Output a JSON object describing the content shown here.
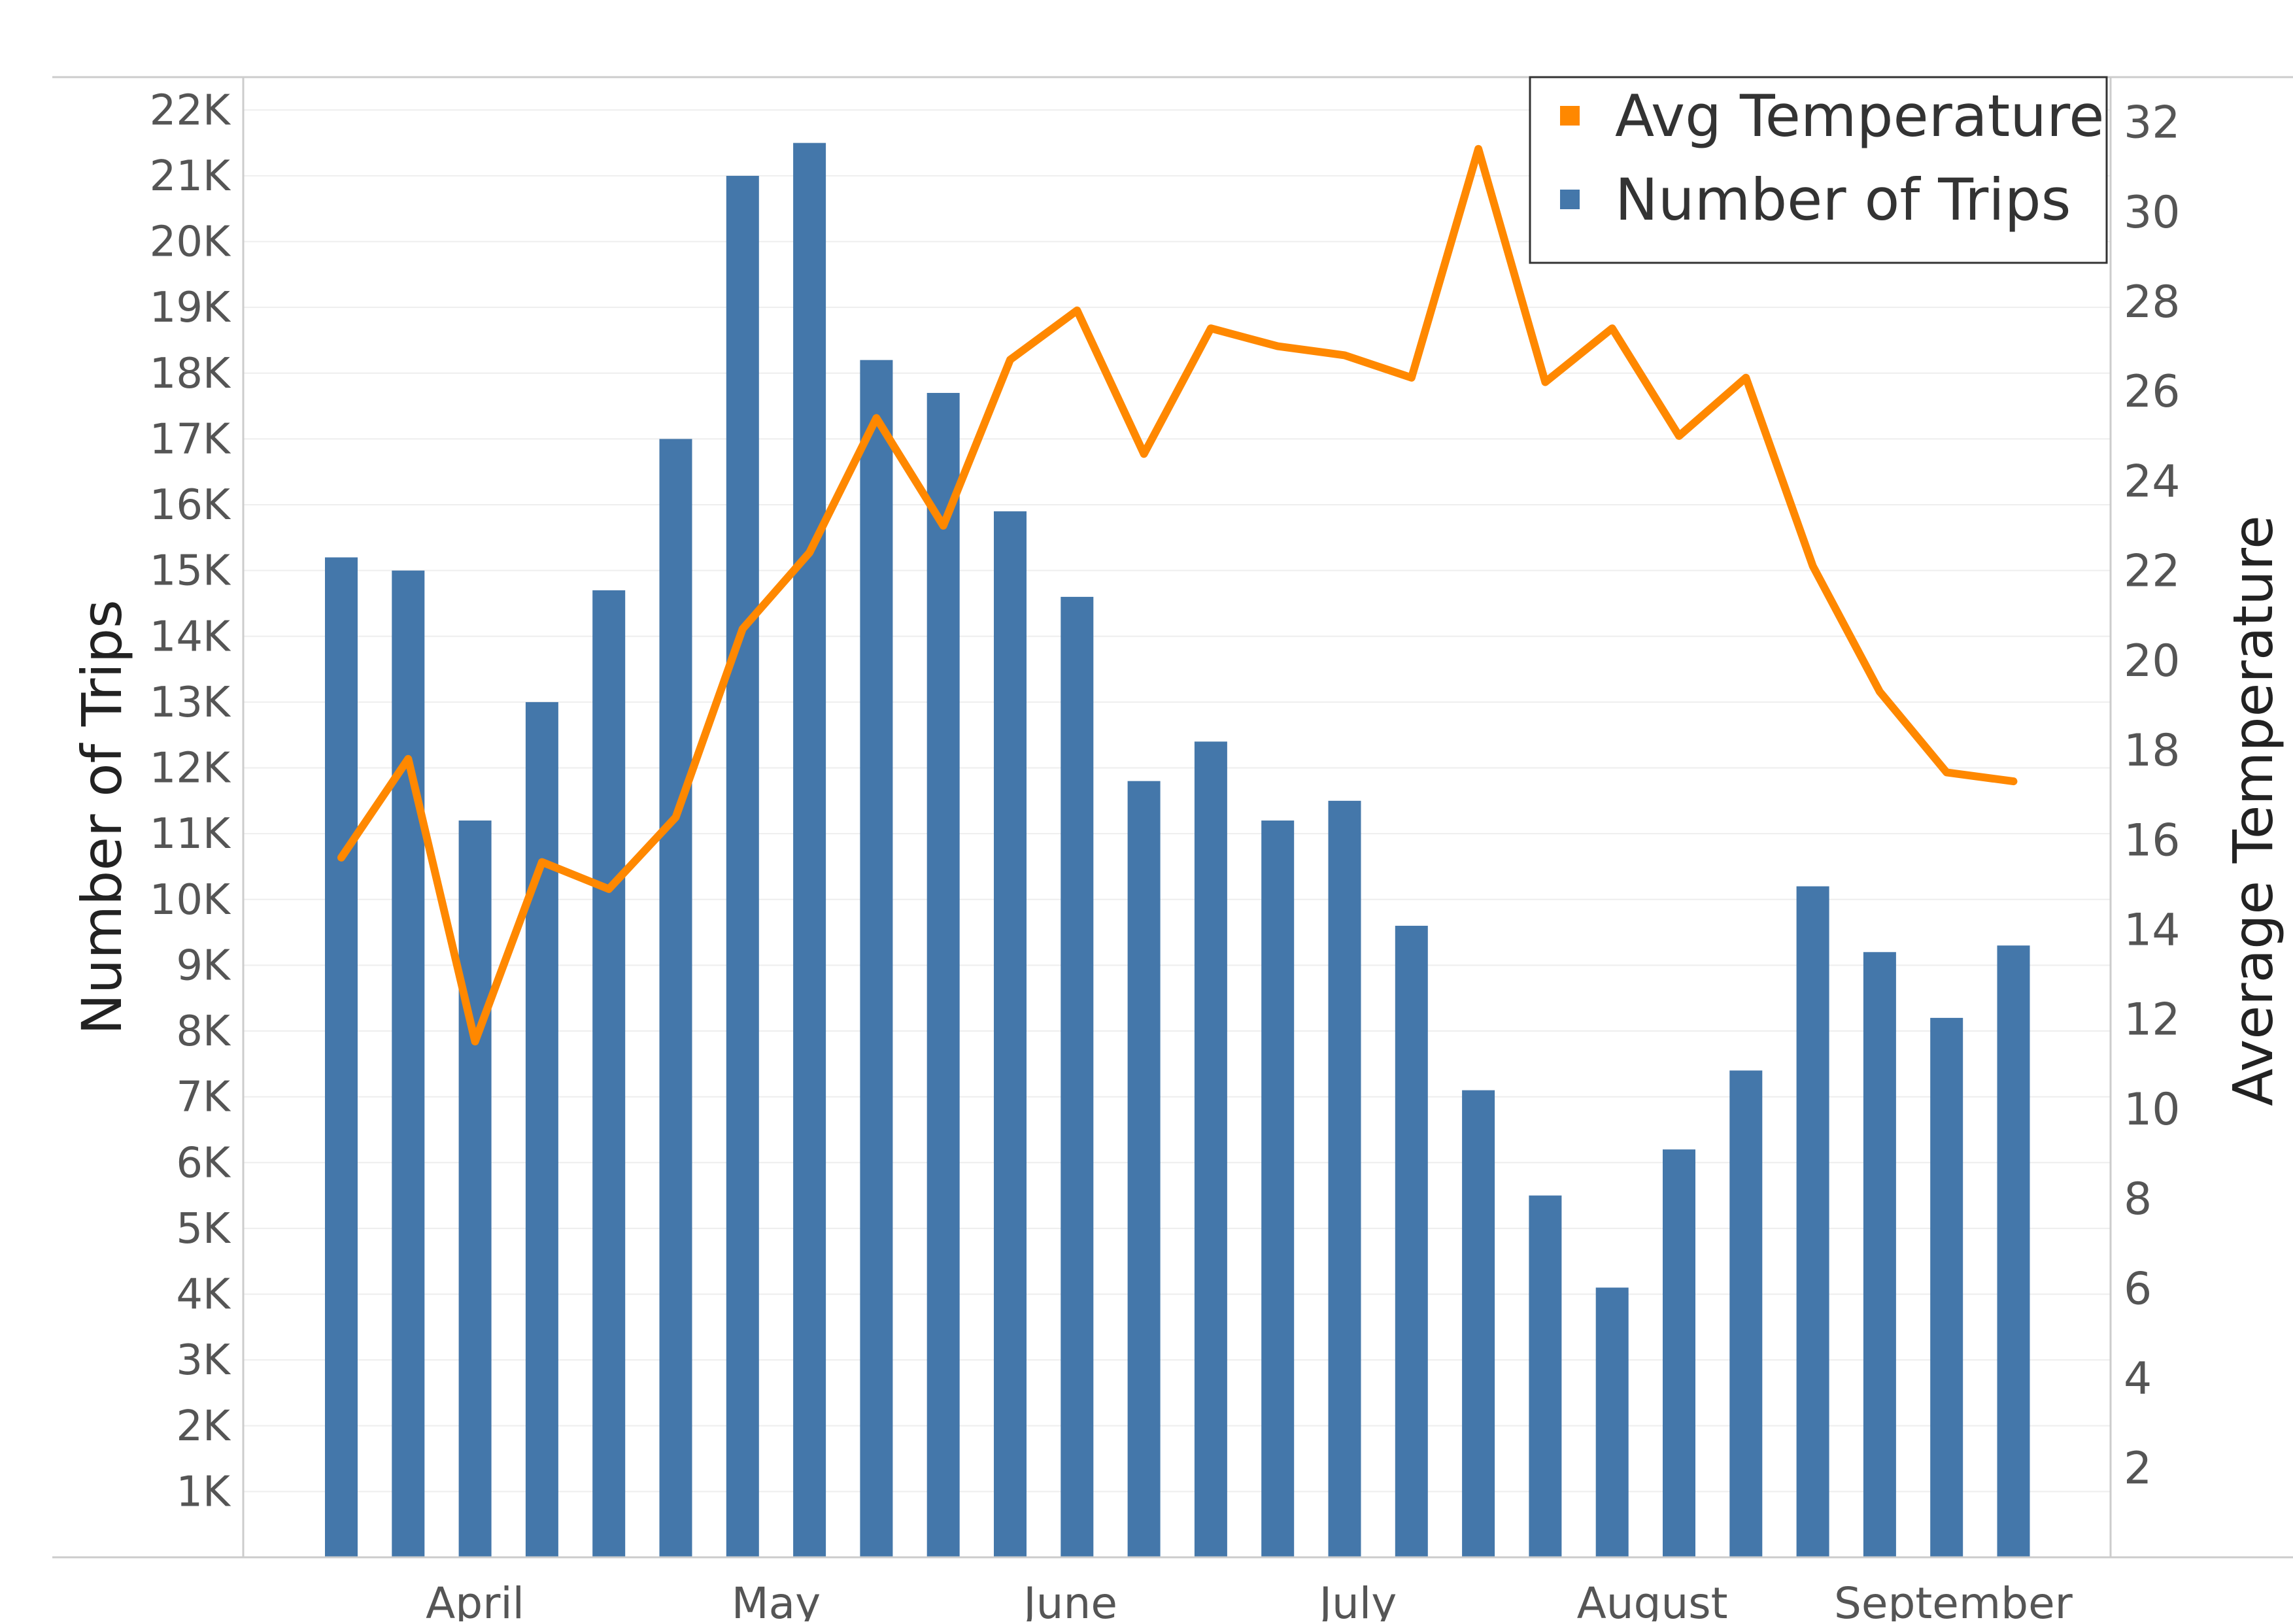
{
  "chart_data": {
    "type": "bar",
    "combo": "bar+line, dual axis",
    "x": [
      "",
      "",
      "",
      "",
      "",
      "",
      "",
      "",
      "",
      "",
      "",
      "",
      "",
      "",
      "",
      "",
      "",
      "",
      "",
      "",
      "",
      "",
      "",
      "",
      "",
      ""
    ],
    "month_labels": [
      {
        "label": "April",
        "at_index": 2
      },
      {
        "label": "May",
        "at_index": 6.5
      },
      {
        "label": "June",
        "at_index": 10.9
      },
      {
        "label": "July",
        "at_index": 15.2
      },
      {
        "label": "August",
        "at_index": 19.6
      },
      {
        "label": "September",
        "at_index": 24.1
      }
    ],
    "series": [
      {
        "name": "Number of Trips",
        "axis": "left",
        "type": "bar",
        "color": "#4477aa",
        "values": [
          15200,
          15000,
          11200,
          13000,
          14700,
          17000,
          21000,
          21500,
          18200,
          17700,
          15900,
          14600,
          11800,
          12400,
          11200,
          11500,
          9600,
          7100,
          5500,
          4100,
          6200,
          7400,
          10200,
          9200,
          8200,
          9300
        ]
      },
      {
        "name": "Avg Temperature",
        "axis": "right",
        "type": "line",
        "color": "#ff8800",
        "values": [
          15.6,
          17.8,
          11.5,
          15.5,
          14.9,
          16.5,
          20.7,
          22.4,
          25.4,
          23.0,
          26.7,
          27.8,
          24.6,
          27.4,
          27.0,
          26.8,
          26.3,
          31.4,
          26.2,
          27.4,
          25.0,
          26.3,
          22.1,
          19.3,
          17.5,
          17.3
        ]
      }
    ],
    "ylabel": "Number of Trips",
    "ylabel_right": "Average Temperature",
    "ylim": [
      0,
      22500
    ],
    "ylim_right": [
      0,
      33
    ],
    "yticks": [
      1000,
      2000,
      3000,
      4000,
      5000,
      6000,
      7000,
      8000,
      9000,
      10000,
      11000,
      12000,
      13000,
      14000,
      15000,
      16000,
      17000,
      18000,
      19000,
      20000,
      21000,
      22000
    ],
    "ytick_labels": [
      "1K",
      "2K",
      "3K",
      "4K",
      "5K",
      "6K",
      "7K",
      "8K",
      "9K",
      "10K",
      "11K",
      "12K",
      "13K",
      "14K",
      "15K",
      "16K",
      "17K",
      "18K",
      "19K",
      "20K",
      "21K",
      "22K"
    ],
    "yticks_right": [
      2,
      4,
      6,
      8,
      10,
      12,
      14,
      16,
      18,
      20,
      22,
      24,
      26,
      28,
      30,
      32
    ],
    "ytick_labels_right": [
      "2",
      "4",
      "6",
      "8",
      "10",
      "12",
      "14",
      "16",
      "18",
      "20",
      "22",
      "24",
      "26",
      "28",
      "30",
      "32"
    ],
    "legend": {
      "position": "top-right",
      "items": [
        {
          "label": "Avg Temperature",
          "color": "#ff8800"
        },
        {
          "label": "Number of Trips",
          "color": "#4477aa"
        }
      ]
    },
    "grid": "horizontal"
  }
}
